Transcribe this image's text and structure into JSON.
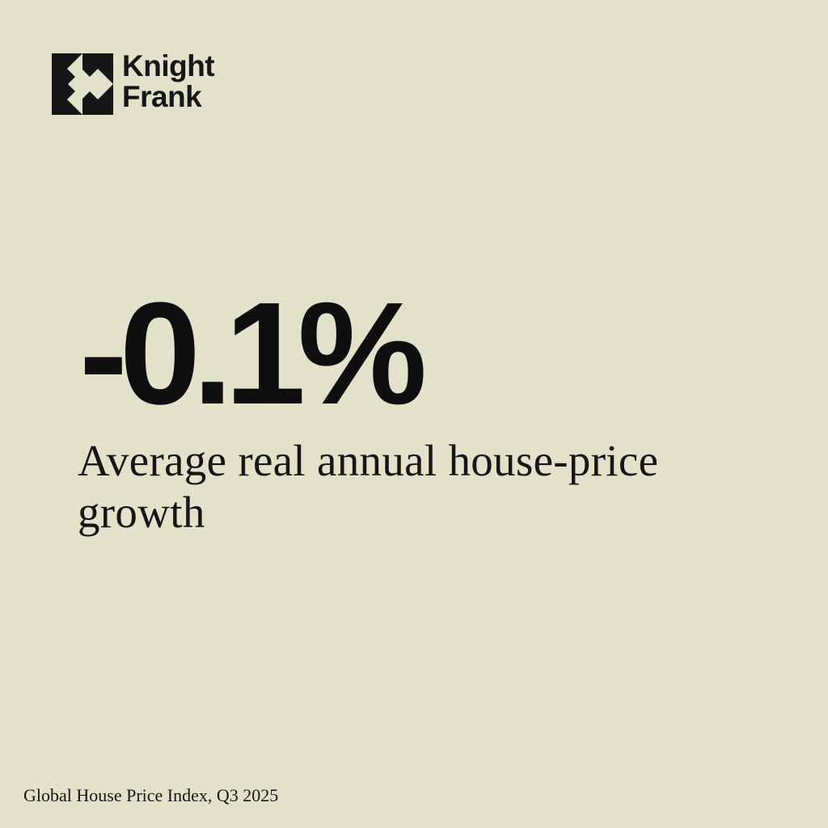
{
  "brand": {
    "logo_icon": "knight-frank-logo-mark",
    "name_line1": "Knight",
    "name_line2": "Frank"
  },
  "stat": {
    "value": "-0.1%",
    "label": "Average real annual house-price growth"
  },
  "source": "Global House Price Index, Q3 2025",
  "colors": {
    "background": "#e2e1c9",
    "text": "#111111"
  }
}
